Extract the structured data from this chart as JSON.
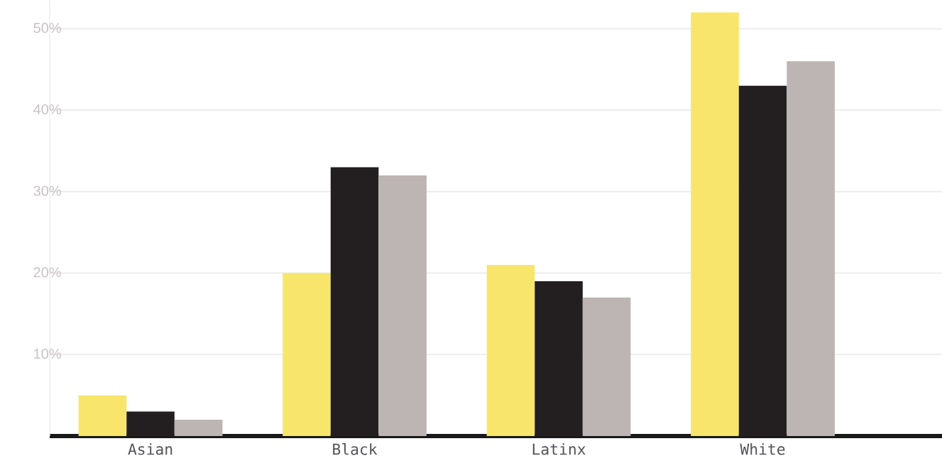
{
  "chart_data": {
    "type": "bar",
    "categories": [
      "Asian",
      "Black",
      "Latinx",
      "White"
    ],
    "series": [
      {
        "color": "#f7e66b",
        "values": [
          5,
          20,
          21,
          52
        ]
      },
      {
        "color": "#231f20",
        "values": [
          3,
          33,
          19,
          43
        ]
      },
      {
        "color": "#bdb4b4",
        "values": [
          2,
          32,
          17,
          46
        ]
      }
    ],
    "ylim": [
      0,
      53.5
    ],
    "yticks": [
      {
        "value": 10,
        "label": "10%"
      },
      {
        "value": 20,
        "label": "20%"
      },
      {
        "value": 30,
        "label": "30%"
      },
      {
        "value": 40,
        "label": "40%"
      },
      {
        "value": 50,
        "label": "50%"
      }
    ],
    "grid": "y"
  }
}
